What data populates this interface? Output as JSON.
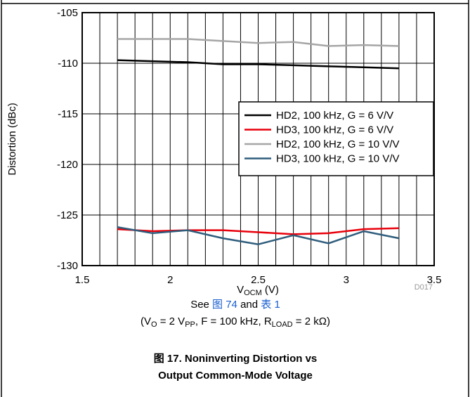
{
  "chart_data": {
    "type": "line",
    "x_label": [
      "V",
      "OCM",
      " (V)"
    ],
    "y_label": "Distortion (dBc)",
    "x": [
      1.7,
      1.9,
      2.1,
      2.3,
      2.5,
      2.7,
      2.9,
      3.1,
      3.3
    ],
    "series": [
      {
        "name": "HD2, 100 kHz, G = 6 V/V",
        "color": "#000000",
        "values": [
          -109.7,
          -109.8,
          -109.9,
          -110.1,
          -110.1,
          -110.2,
          -110.3,
          -110.4,
          -110.5
        ]
      },
      {
        "name": "HD3, 100 kHz, G = 6 V/V",
        "color": "#e8000b",
        "values": [
          -126.4,
          -126.6,
          -126.5,
          -126.5,
          -126.7,
          -126.9,
          -126.8,
          -126.4,
          -126.3
        ]
      },
      {
        "name": "HD2, 100 kHz, G = 10 V/V",
        "color": "#a6a6a6",
        "values": [
          -107.6,
          -107.6,
          -107.6,
          -107.8,
          -108.0,
          -107.9,
          -108.3,
          -108.2,
          -108.3
        ]
      },
      {
        "name": "HD3, 100 kHz, G = 10 V/V",
        "color": "#2f5d7c",
        "values": [
          -126.2,
          -126.8,
          -126.5,
          -127.3,
          -127.9,
          -127.0,
          -127.8,
          -126.6,
          -127.3
        ]
      }
    ],
    "xlim": [
      1.5,
      3.5
    ],
    "xticks": [
      1.5,
      2,
      2.5,
      3,
      3.5
    ],
    "x_minor_grid": [
      1.6,
      1.7,
      1.8,
      1.9,
      2.1,
      2.2,
      2.3,
      2.4,
      2.6,
      2.7,
      2.8,
      2.9,
      3.1,
      3.2,
      3.3,
      3.4
    ],
    "ylim": [
      -130,
      -105
    ],
    "yticks": [
      -130,
      -125,
      -120,
      -115,
      -110,
      -105
    ],
    "grid": true,
    "legend": "right",
    "figure_id": "D017"
  },
  "caption": {
    "see_note": [
      "See ",
      "图 74",
      " and ",
      "表 1"
    ],
    "conditions": [
      "(V",
      "O",
      " = 2 V",
      "PP",
      ", F = 100 kHz, R",
      "LOAD",
      " = 2 kΩ)"
    ],
    "figure_title": [
      "图 17. Noninverting Distortion vs",
      "Output Common-Mode Voltage"
    ]
  }
}
